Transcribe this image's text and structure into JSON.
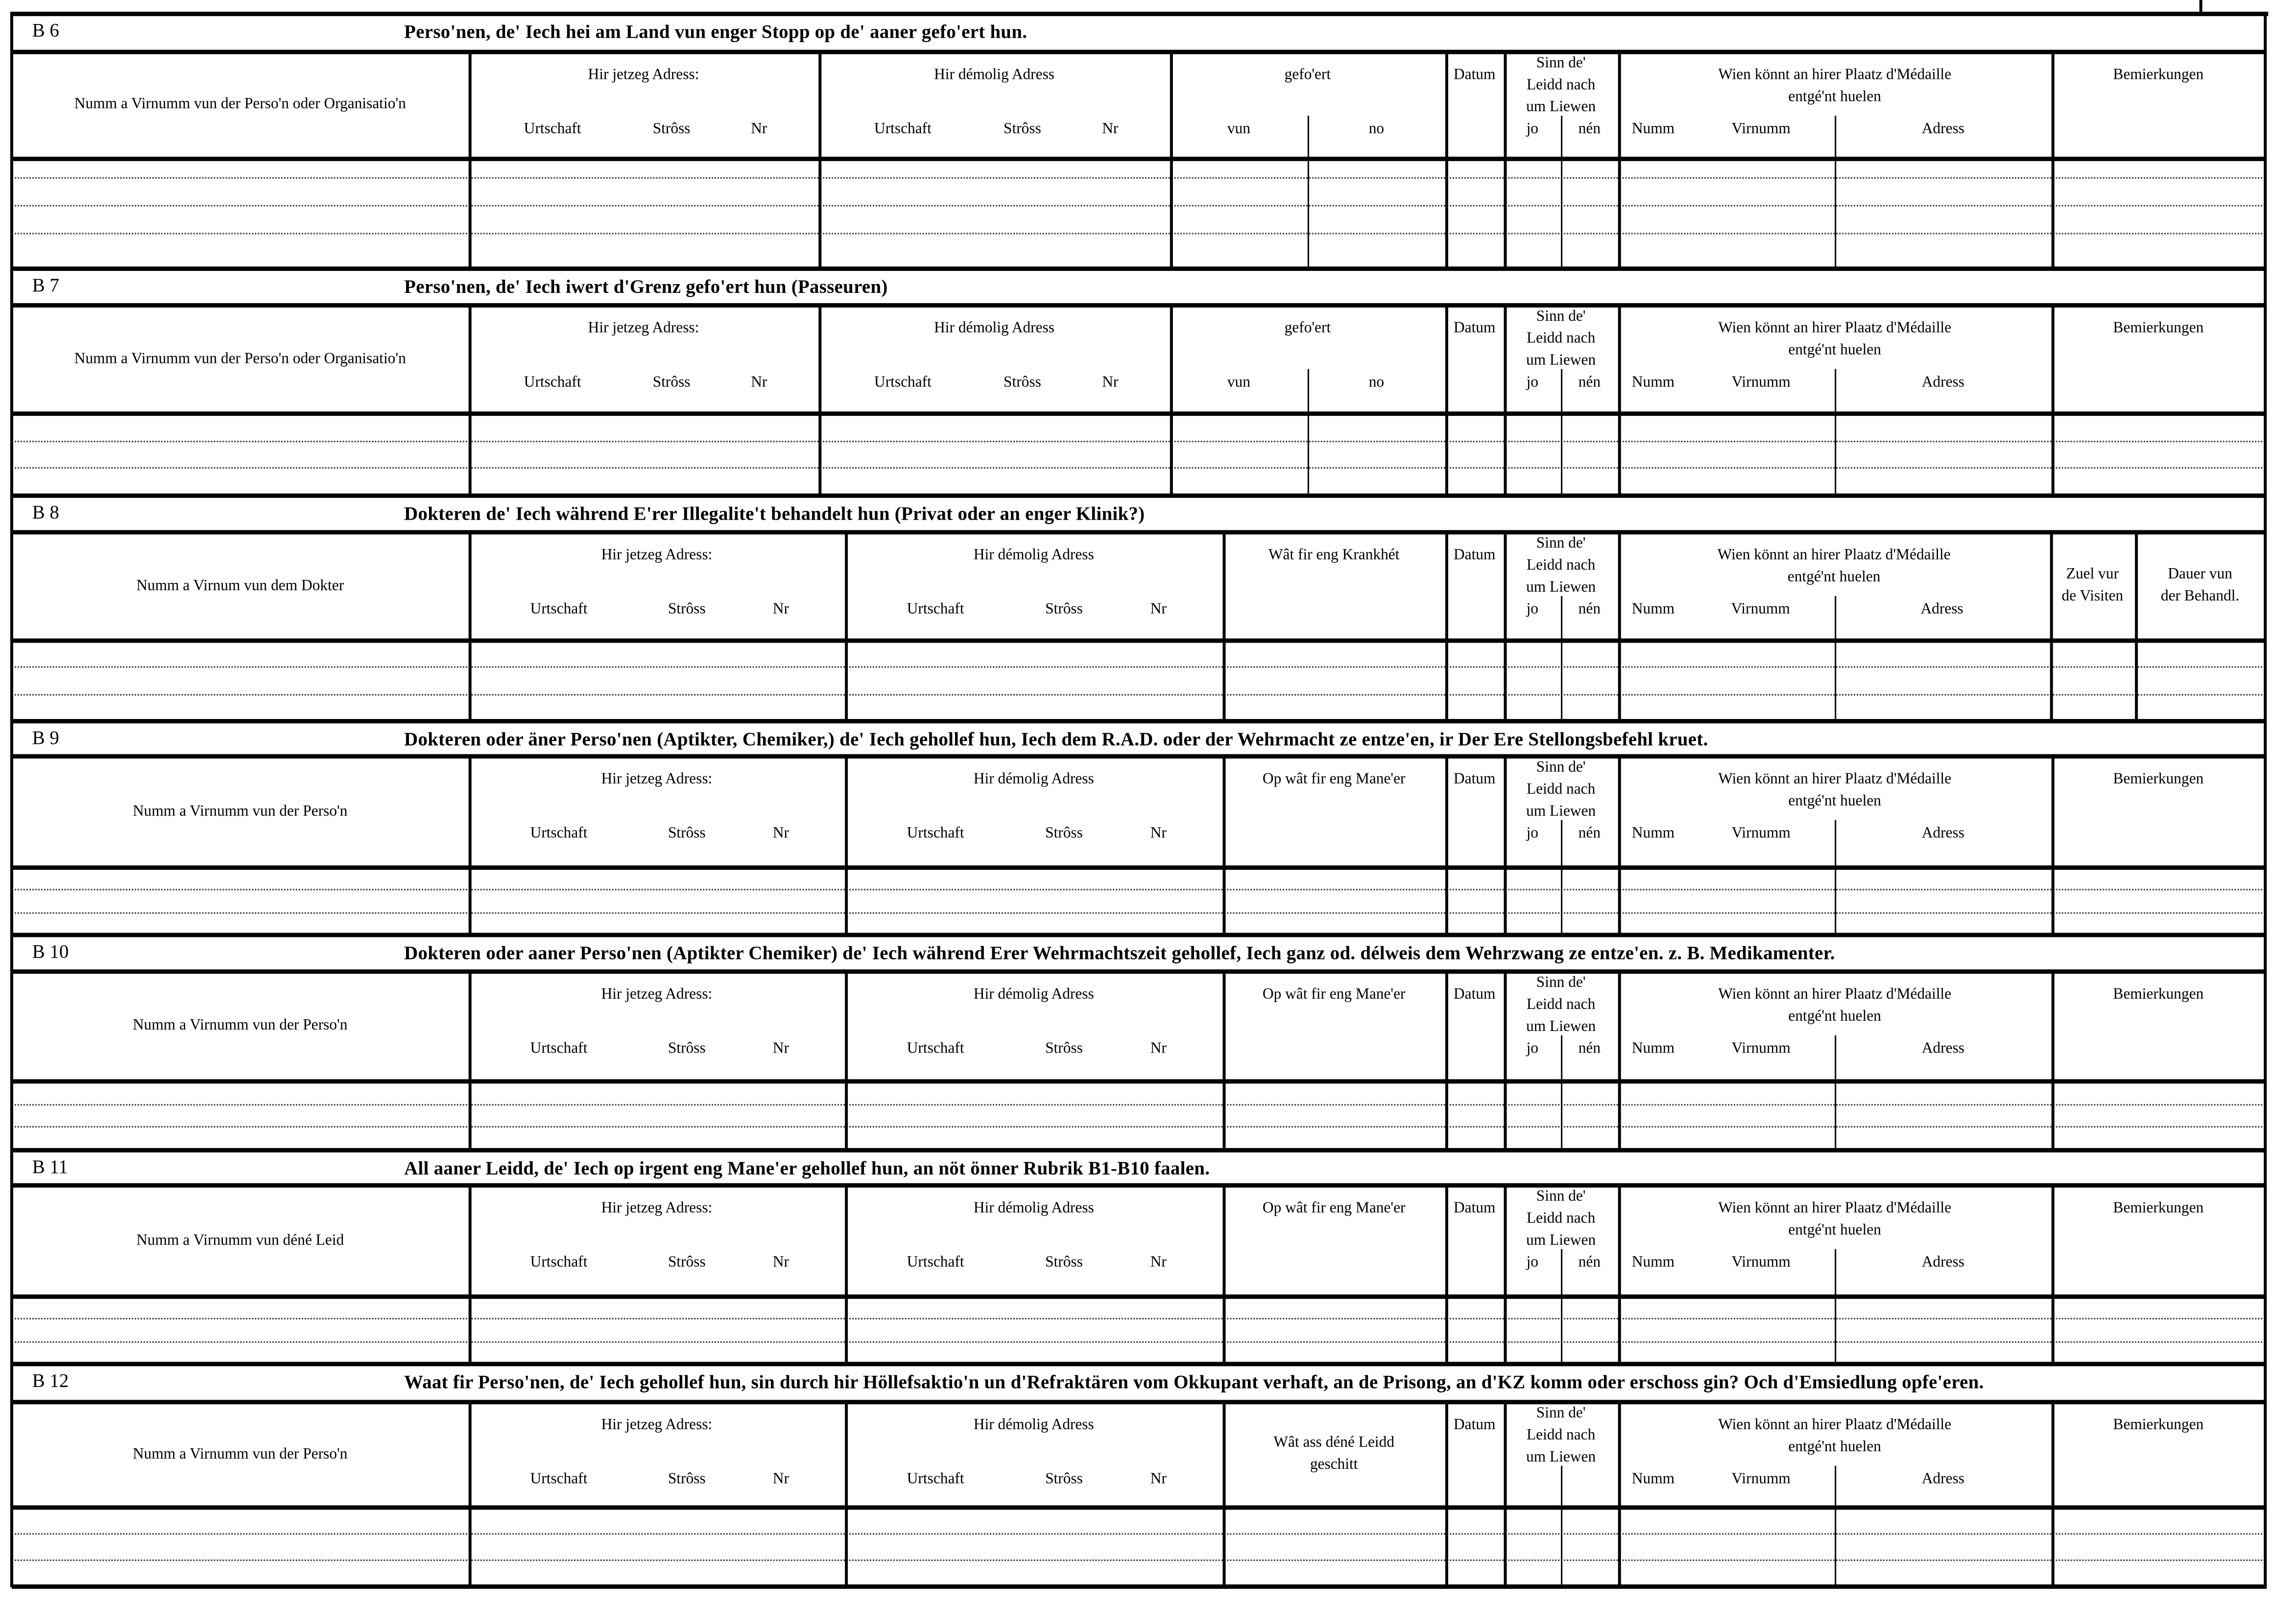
{
  "sections": [
    {
      "code": "B 6",
      "title": "Perso'nen, de' Iech hei am Land vun enger Stopp  op de' aaner gefo'ert hun.",
      "rows": 3,
      "columns": [
        {
          "label": "Numm a Virnumm vun der Perso'n oder Organisatio'n"
        },
        {
          "label": "Hir jetzeg Adress:",
          "sub": [
            "Urtschaft",
            "Strôss",
            "Nr"
          ]
        },
        {
          "label": "Hir démolig Adress",
          "sub": [
            "Urtschaft",
            "Strôss",
            "Nr"
          ]
        },
        {
          "label": "gefo'ert",
          "sub": [
            "vun",
            "no"
          ]
        },
        {
          "label": "Datum"
        },
        {
          "label": "Sinn  de'\nLeidd  nach\num Liewen",
          "sub": [
            "jo",
            "nén"
          ]
        },
        {
          "label": "Wien  könnt  an  hirer  Plaatz  d'Médaille\nentgé'nt huelen",
          "sub": [
            "Numm",
            "Virnumm",
            "Adress"
          ]
        },
        {
          "label": "Bemierkungen"
        }
      ]
    },
    {
      "code": "B 7",
      "title": "Perso'nen,  de'  Iech  iwert  d'Grenz  gefo'ert  hun  (Passeuren)",
      "rows": 2,
      "columns": [
        {
          "label": "Numm a Virnumm vun der Perso'n oder Organisatio'n"
        },
        {
          "label": "Hir jetzeg Adress:",
          "sub": [
            "Urtschaft",
            "Strôss",
            "Nr"
          ]
        },
        {
          "label": "Hir démolig Adress",
          "sub": [
            "Urtschaft",
            "Strôss",
            "Nr"
          ]
        },
        {
          "label": "gefo'ert",
          "sub": [
            "vun",
            "no"
          ]
        },
        {
          "label": "Datum"
        },
        {
          "label": "Sinn  de'\nLeidd  nach\num Liewen",
          "sub": [
            "jo",
            "nén"
          ]
        },
        {
          "label": "Wien  könnt  an  hirer  Plaatz  d'Médaille\nentgé'nt huelen",
          "sub": [
            "Numm",
            "Virnumm",
            "Adress"
          ]
        },
        {
          "label": "Bemierkungen"
        }
      ]
    },
    {
      "code": "B 8",
      "title": "Dokteren  de'  Iech  während  E'rer  Illegalite't  behandelt  hun  (Privat  oder  an  enger  Klinik?)",
      "rows": 2,
      "columns": [
        {
          "label": "Numm a Virnum vun dem Dokter"
        },
        {
          "label": "Hir jetzeg Adress:",
          "sub": [
            "Urtschaft",
            "Strôss",
            "Nr"
          ]
        },
        {
          "label": "Hir démolig Adress",
          "sub": [
            "Urtschaft",
            "Strôss",
            "Nr"
          ]
        },
        {
          "label": "Wât  fir  eng  Krankhét"
        },
        {
          "label": "Datum"
        },
        {
          "label": "Sinn  de'\nLeidd  nach\num Liewen",
          "sub": [
            "jo",
            "nén"
          ]
        },
        {
          "label": "Wien  könnt  an  hirer  Plaatz  d'Médaille\nentgé'nt huelen",
          "sub": [
            "Numm",
            "Virnumm",
            "Adress"
          ]
        },
        {
          "label": "Zuel vur\nde Visiten"
        },
        {
          "label": "Dauer vun\nder Behandl."
        }
      ]
    },
    {
      "code": "B 9",
      "title": "Dokteren oder äner Perso'nen (Aptikter, Chemiker,) de' Iech gehollef hun, Iech dem R.A.D. oder der Wehrmacht  ze  entze'en,  ir Der Ere Stellongsbefehl kruet.",
      "rows": 2,
      "columns": [
        {
          "label": "Numm  a  Virnumm  vun  der  Perso'n"
        },
        {
          "label": "Hir jetzeg Adress:",
          "sub": [
            "Urtschaft",
            "Strôss",
            "Nr"
          ]
        },
        {
          "label": "Hir démolig Adress",
          "sub": [
            "Urtschaft",
            "Strôss",
            "Nr"
          ]
        },
        {
          "label": "Op  wât  fir  eng  Mane'er"
        },
        {
          "label": "Datum"
        },
        {
          "label": "Sinn  de'\nLeidd  nach\num Liewen",
          "sub": [
            "jo",
            "nén"
          ]
        },
        {
          "label": "Wien  könnt  an  hirer  Plaatz  d'Médaille\nentgé'nt huelen",
          "sub": [
            "Numm",
            "Virnumm",
            "Adress"
          ]
        },
        {
          "label": "Bemierkungen"
        }
      ]
    },
    {
      "code": "B 10",
      "title": "Dokteren oder aaner Perso'nen (Aptikter Chemiker) de' Iech  während  Erer  Wehrmachtszeit  gehollef,  Iech  ganz  od.  délweis  dem  Wehrzwang  ze  entze'en.  z.  B.  Medikamenter.",
      "rows": 2,
      "columns": [
        {
          "label": "Numm  a  Virnumm  vun  der  Perso'n"
        },
        {
          "label": "Hir jetzeg Adress:",
          "sub": [
            "Urtschaft",
            "Strôss",
            "Nr"
          ]
        },
        {
          "label": "Hir démolig Adress",
          "sub": [
            "Urtschaft",
            "Strôss",
            "Nr"
          ]
        },
        {
          "label": "Op  wât  fir  eng  Mane'er"
        },
        {
          "label": "Datum"
        },
        {
          "label": "Sinn  de'\nLeidd  nach\num Liewen",
          "sub": [
            "jo",
            "nén"
          ]
        },
        {
          "label": "Wien  könnt  an  hirer  Plaatz  d'Médaille\nentgé'nt huelen",
          "sub": [
            "Numm",
            "Virnumm",
            "Adress"
          ]
        },
        {
          "label": "Bemierkungen"
        }
      ]
    },
    {
      "code": "B 11",
      "title": "All  aaner  Leidd,  de'  Iech  op  irgent  eng  Mane'er   gehollef  hun,  an  nöt  önner  Rubrik  B1-B10  faalen.",
      "rows": 2,
      "columns": [
        {
          "label": "Numm  a  Virnumm  vun  déné  Leid"
        },
        {
          "label": "Hir jetzeg Adress:",
          "sub": [
            "Urtschaft",
            "Strôss",
            "Nr"
          ]
        },
        {
          "label": "Hir démolig Adress",
          "sub": [
            "Urtschaft",
            "Strôss",
            "Nr"
          ]
        },
        {
          "label": "Op  wât  fir  eng  Mane'er"
        },
        {
          "label": "Datum"
        },
        {
          "label": "Sinn  de'\nLeidd  nach\num Liewen",
          "sub": [
            "jo",
            "nén"
          ]
        },
        {
          "label": "Wien  könnt  an  hirer  Plaatz  d'Médaille\nentgé'nt huelen",
          "sub": [
            "Numm",
            "Virnumm",
            "Adress"
          ]
        },
        {
          "label": "Bemierkungen"
        }
      ]
    },
    {
      "code": "B 12",
      "title": "Waat fir Perso'nen, de' Iech gehollef hun, sin durch hir Höllefsaktio'n un d'Refraktären vom Okkupant verhaft, an de Prisong, an d'KZ komm oder  erschoss gin? Och d'Emsiedlung opfe'eren.",
      "rows": 2,
      "columns": [
        {
          "label": "Numm  a  Virnumm  vun  der  Perso'n"
        },
        {
          "label": "Hir jetzeg Adress:",
          "sub": [
            "Urtschaft",
            "Strôss",
            "Nr"
          ]
        },
        {
          "label": "Hir démolig Adress",
          "sub": [
            "Urtschaft",
            "Strôss",
            "Nr"
          ]
        },
        {
          "label": "Wât  ass  déné  Leidd\ngeschitt"
        },
        {
          "label": "Datum"
        },
        {
          "label": "Sinn  de'\nLeidd  nach\num Liewen",
          "sub": []
        },
        {
          "label": "Wien  könnt  an  hirer  Plaatz  d'Médaille\nentgé'nt huelen",
          "sub": [
            "Numm",
            "Virnumm",
            "Adress"
          ]
        },
        {
          "label": "Bemierkungen"
        }
      ]
    }
  ]
}
